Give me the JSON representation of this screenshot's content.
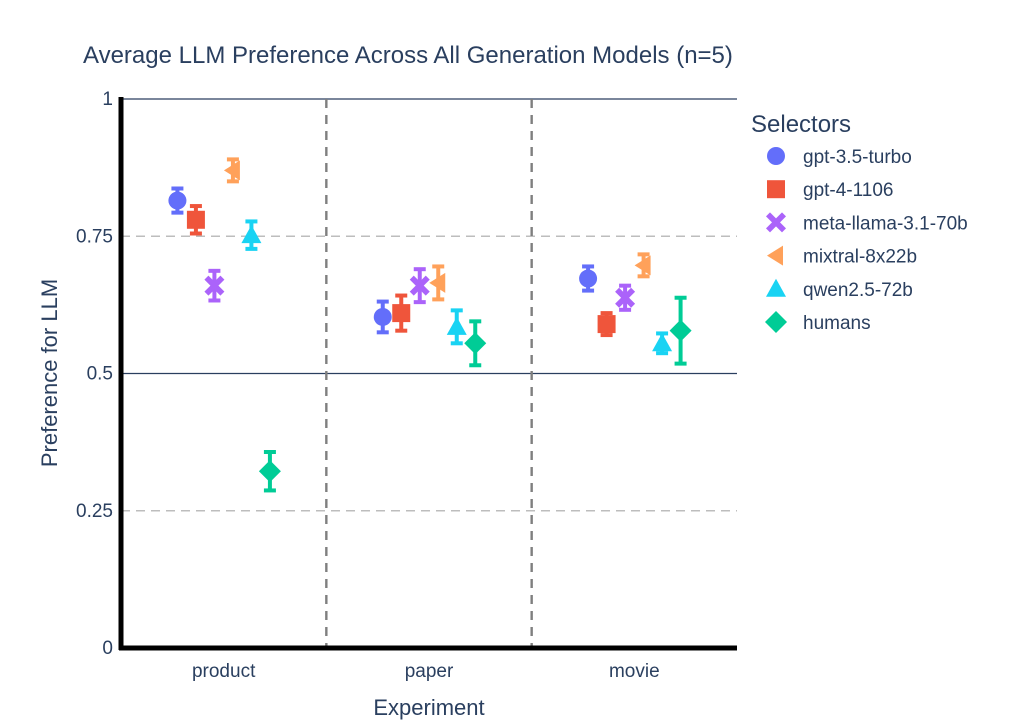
{
  "chart_data": {
    "type": "scatter",
    "title": "Average LLM Preference Across All Generation Models (n=5)",
    "xlabel": "Experiment",
    "ylabel": "Preference for LLM",
    "categories": [
      "product",
      "paper",
      "movie"
    ],
    "ylim": [
      0,
      1
    ],
    "yticks": [
      {
        "value": 0,
        "label": "0"
      },
      {
        "value": 0.25,
        "label": "0.25"
      },
      {
        "value": 0.5,
        "label": "0.5"
      },
      {
        "value": 0.75,
        "label": "0.75"
      },
      {
        "value": 1,
        "label": "1"
      }
    ],
    "grid": true,
    "legend": {
      "title": "Selectors",
      "position": "right"
    },
    "series": [
      {
        "name": "gpt-3.5-turbo",
        "color": "#636efa",
        "marker": "circle",
        "values": [
          0.815,
          0.603,
          0.673
        ],
        "errors": [
          0.022,
          0.028,
          0.022
        ]
      },
      {
        "name": "gpt-4-1106",
        "color": "#ef553b",
        "marker": "square",
        "values": [
          0.78,
          0.61,
          0.59
        ],
        "errors": [
          0.025,
          0.032,
          0.02
        ]
      },
      {
        "name": "meta-llama-3.1-70b",
        "color": "#ab63fa",
        "marker": "x",
        "values": [
          0.66,
          0.66,
          0.638
        ],
        "errors": [
          0.027,
          0.03,
          0.022
        ]
      },
      {
        "name": "mixtral-8x22b",
        "color": "#ffa15a",
        "marker": "triangle-left",
        "values": [
          0.87,
          0.665,
          0.697
        ],
        "errors": [
          0.02,
          0.03,
          0.02
        ]
      },
      {
        "name": "qwen2.5-72b",
        "color": "#19d3f3",
        "marker": "triangle-up",
        "values": [
          0.752,
          0.585,
          0.555
        ],
        "errors": [
          0.025,
          0.03,
          0.018
        ]
      },
      {
        "name": "humans",
        "color": "#00cc96",
        "marker": "diamond",
        "values": [
          0.322,
          0.555,
          0.578
        ],
        "errors": [
          0.035,
          0.04,
          0.06
        ]
      }
    ]
  }
}
